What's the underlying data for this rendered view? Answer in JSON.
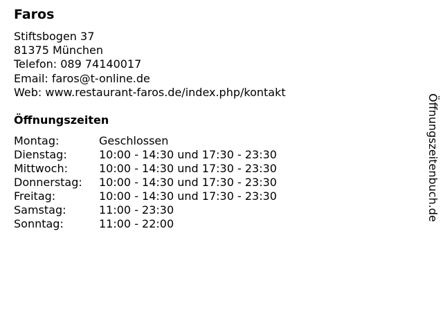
{
  "name": "Faros",
  "address": {
    "street": "Stiftsbogen 37",
    "city": "81375 München",
    "phone": "Telefon: 089 74140017",
    "email": "Email: faros@t-online.de",
    "web": "Web: www.restaurant-faros.de/index.php/kontakt"
  },
  "hours_heading": "Öffnungszeiten",
  "hours": [
    {
      "day": "Montag:",
      "time": "Geschlossen"
    },
    {
      "day": "Dienstag:",
      "time": "10:00 - 14:30 und 17:30 - 23:30"
    },
    {
      "day": "Mittwoch:",
      "time": "10:00 - 14:30 und 17:30 - 23:30"
    },
    {
      "day": "Donnerstag:",
      "time": "10:00 - 14:30 und 17:30 - 23:30"
    },
    {
      "day": "Freitag:",
      "time": "10:00 - 14:30 und 17:30 - 23:30"
    },
    {
      "day": "Samstag:",
      "time": "11:00 - 23:30"
    },
    {
      "day": "Sonntag:",
      "time": "11:00 - 22:00"
    }
  ],
  "site_label": "Öffnungszeitenbuch.de"
}
